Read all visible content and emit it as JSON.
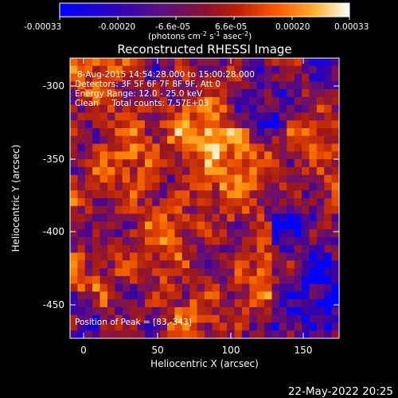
{
  "colorbar": {
    "tick_labels": [
      "-0.00033",
      "-0.00020",
      "-6.6e-05",
      "6.6e-05",
      "0.00020",
      "0.00033"
    ],
    "units_label_prefix": "(photons cm",
    "units_sup1": "-2",
    "units_mid1": " s",
    "units_sup2": "-1",
    "units_mid2": " asec",
    "units_sup3": "-2",
    "units_suffix": ")"
  },
  "overlay": {
    "time_range": "8-Aug-2015 14:54:28.000 to 15:00:28.000",
    "detectors": "Detectors: 3F 5F 6F 7F 8F 9F, Att 0",
    "energy_range": "Energy Range: 12.0 - 25.0 keV",
    "clean_counts": "Clean     Total counts: 7.57E+03",
    "peak": "Position of Peak = [83,-343]"
  },
  "footer": {
    "date": "22-May-2022 20:25"
  },
  "chart_data": {
    "type": "heatmap",
    "title": "Reconstructed RHESSI Image",
    "xlabel": "Heliocentric X (arcsec)",
    "ylabel": "Heliocentric Y (arcsec)",
    "xlim": [
      -15,
      175
    ],
    "ylim": [
      -475,
      -285
    ],
    "x_ticks": [
      0,
      50,
      100,
      150
    ],
    "y_ticks": [
      -300,
      -350,
      -400,
      -450
    ],
    "x_tick_labels": [
      "0",
      "50",
      "100",
      "150"
    ],
    "y_tick_labels": [
      "-300",
      "-350",
      "-400",
      "-450"
    ],
    "colorbar_range": [
      -0.00033,
      0.00033
    ],
    "peak_position": [
      83,
      -343
    ],
    "colormap": [
      "#0000ff",
      "#3a00a0",
      "#6a1070",
      "#a01818",
      "#e04000",
      "#ff8000",
      "#ffc040",
      "#ffffff"
    ],
    "grid": false
  }
}
